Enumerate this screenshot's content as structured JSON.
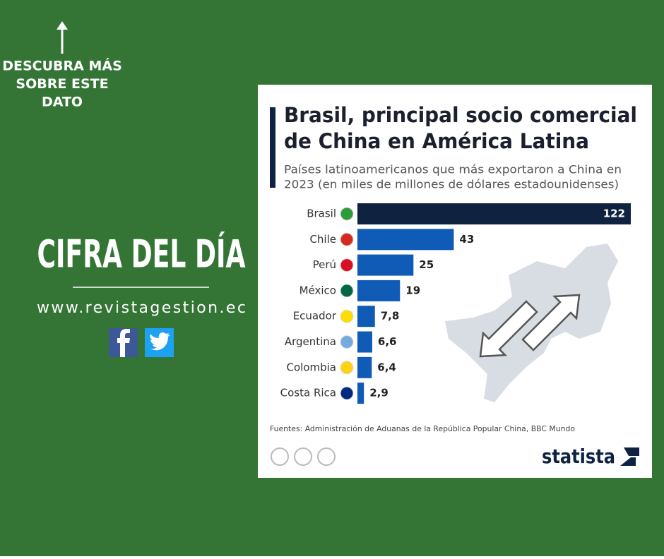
{
  "promo": {
    "cta_lines": [
      "DESCUBRA MÁS",
      "SOBRE ESTE",
      "DATO"
    ],
    "headline": "CIFRA DEL DÍA",
    "website": "www.revistagestion.ec"
  },
  "chart_data": {
    "type": "bar",
    "orientation": "horizontal",
    "title_lines": [
      "Brasil, principal socio comercial",
      "de China en América Latina"
    ],
    "subtitle_lines": [
      "Países latinoamericanos que más exportaron a China en",
      "2023 (en miles de millones de dólares estadounidenses)"
    ],
    "categories": [
      "Brasil",
      "Chile",
      "Perú",
      "México",
      "Ecuador",
      "Argentina",
      "Colombia",
      "Costa Rica"
    ],
    "values": [
      122,
      43,
      25,
      19,
      7.8,
      6.6,
      6.4,
      2.9
    ],
    "value_labels": [
      "122",
      "43",
      "25",
      "19",
      "7,8",
      "6,6",
      "6,4",
      "2,9"
    ],
    "colors": [
      "#0f2341",
      "#0f5bb5",
      "#0f5bb5",
      "#0f5bb5",
      "#0f5bb5",
      "#0f5bb5",
      "#0f5bb5",
      "#0f5bb5"
    ],
    "source": "Fuentes: Administración de Aduanas de la República Popular China, BBC Mundo",
    "brand": "statista"
  }
}
